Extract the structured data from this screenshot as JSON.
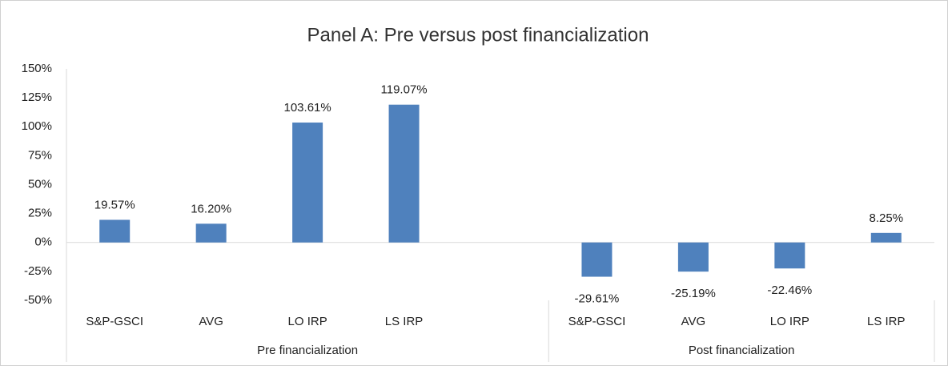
{
  "chart_data": {
    "type": "bar",
    "title": "Panel A: Pre versus post financialization",
    "categories": [
      "S&P-GSCI",
      "AVG",
      "LO IRP",
      "LS IRP",
      null,
      "S&P-GSCI",
      "AVG",
      "LO IRP",
      "LS IRP"
    ],
    "values": [
      19.57,
      16.2,
      103.61,
      119.07,
      null,
      -29.61,
      -25.19,
      -22.46,
      8.25
    ],
    "value_labels": [
      "19.57%",
      "16.20%",
      "103.61%",
      "119.07%",
      null,
      "-29.61%",
      "-25.19%",
      "-22.46%",
      "8.25%"
    ],
    "category_groups": [
      {
        "name": "Pre financialization",
        "count": 5
      },
      {
        "name": "Post financialization",
        "count": 4
      }
    ],
    "color": "#4f81bd",
    "ylim": [
      -50,
      150
    ],
    "yticks": [
      {
        "value": -50,
        "label": "-50%"
      },
      {
        "value": -25,
        "label": "-25%"
      },
      {
        "value": 0,
        "label": "0%"
      },
      {
        "value": 25,
        "label": "25%"
      },
      {
        "value": 50,
        "label": "50%"
      },
      {
        "value": 75,
        "label": "75%"
      },
      {
        "value": 100,
        "label": "100%"
      },
      {
        "value": 125,
        "label": "125%"
      },
      {
        "value": 150,
        "label": "150%"
      }
    ],
    "grid": false
  }
}
